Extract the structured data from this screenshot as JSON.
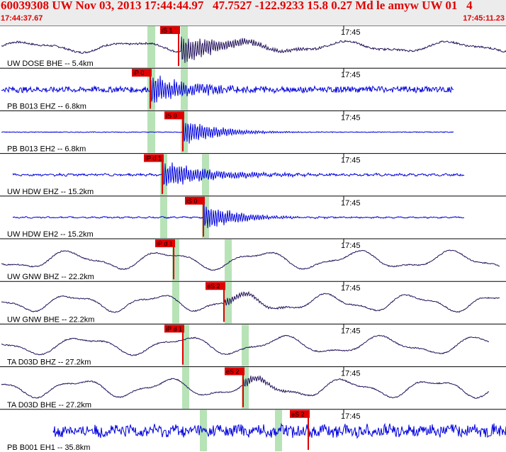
{
  "header": {
    "title": "60039308 UW Nov 03, 2013 17:44:44.97   47.7527 -122.9233 15.8 0.27 Md le amyw UW 01   4",
    "start_time": "17:44:37.67",
    "end_time": "17:45:11.23"
  },
  "tick_label": "17:45",
  "colors": {
    "trace_dark": "#22115a",
    "trace_blue": "#0000dd",
    "pick_red": "#e00000",
    "window_green": "#b7e3b7",
    "header_text": "#e00000"
  },
  "traces": [
    {
      "label": "UW DOSE BHE -- 5.4km",
      "color": "dark",
      "style": "long",
      "amp": 0.22,
      "noise": 0.05,
      "period": 150,
      "x0": 2,
      "x1": 714,
      "onset": 255,
      "burst": 0.9,
      "decay": 60,
      "picks": [
        {
          "label": "iS 1",
          "x": 252
        }
      ],
      "windows": [
        [
          208,
          219
        ],
        [
          255,
          265
        ]
      ]
    },
    {
      "label": "PB B013 EHZ -- 6.8km",
      "color": "blue",
      "style": "noise",
      "amp": 0.02,
      "noise": 0.15,
      "period": 40,
      "x0": 2,
      "x1": 640,
      "onset": 212,
      "burst": 0.9,
      "decay": 55,
      "picks": [
        {
          "label": "iP 0",
          "x": 212
        }
      ],
      "windows": [
        [
          208,
          219
        ],
        [
          255,
          265
        ]
      ]
    },
    {
      "label": "PB B013 EH2 -- 6.8km",
      "color": "blue",
      "style": "flat",
      "amp": 0.0,
      "noise": 0.02,
      "period": 40,
      "x0": 2,
      "x1": 640,
      "onset": 258,
      "burst": 0.85,
      "decay": 45,
      "picks": [
        {
          "label": "iS 0",
          "x": 258
        }
      ],
      "windows": [
        [
          208,
          219
        ],
        [
          255,
          265
        ]
      ]
    },
    {
      "label": "UW HDW EHZ -- 15.2km",
      "color": "blue",
      "style": "noise",
      "amp": 0.03,
      "noise": 0.05,
      "period": 16,
      "x0": 18,
      "x1": 655,
      "onset": 229,
      "burst": 0.8,
      "decay": 70,
      "picks": [
        {
          "label": "iP d 1",
          "x": 229
        }
      ],
      "windows": [
        [
          226,
          236
        ],
        [
          285,
          295
        ]
      ]
    },
    {
      "label": "UW HDW EH2 -- 15.2km",
      "color": "blue",
      "style": "noise",
      "amp": 0.02,
      "noise": 0.03,
      "period": 16,
      "x0": 18,
      "x1": 655,
      "onset": 287,
      "burst": 0.85,
      "decay": 45,
      "picks": [
        {
          "label": "iS 0",
          "x": 287
        }
      ],
      "windows": [
        [
          226,
          236
        ],
        [
          285,
          295
        ]
      ]
    },
    {
      "label": "UW GNW BHZ -- 22.2km",
      "color": "dark",
      "style": "long",
      "amp": 0.38,
      "noise": 0.03,
      "period": 135,
      "x0": 2,
      "x1": 705,
      "onset": 0,
      "burst": 0,
      "decay": 1,
      "picks": [
        {
          "label": "iP d 1",
          "x": 245
        }
      ],
      "windows": [
        [
          243,
          253
        ],
        [
          317,
          327
        ]
      ]
    },
    {
      "label": "UW GNW BHE -- 22.2km",
      "color": "dark",
      "style": "long",
      "amp": 0.36,
      "noise": 0.03,
      "period": 120,
      "x0": 2,
      "x1": 705,
      "onset": 317,
      "burst": 0.25,
      "decay": 40,
      "picks": [
        {
          "label": "eS 2",
          "x": 316
        }
      ],
      "windows": [
        [
          243,
          253
        ],
        [
          317,
          327
        ]
      ]
    },
    {
      "label": "TA D03D BHZ -- 27.2km",
      "color": "dark",
      "style": "long",
      "amp": 0.38,
      "noise": 0.03,
      "period": 140,
      "x0": 2,
      "x1": 690,
      "onset": 0,
      "burst": 0,
      "decay": 1,
      "picks": [
        {
          "label": "iP d 1",
          "x": 258
        }
      ],
      "windows": [
        [
          257,
          267
        ],
        [
          341,
          351
        ]
      ]
    },
    {
      "label": "TA D03D BHE -- 27.2km",
      "color": "dark",
      "style": "long",
      "amp": 0.38,
      "noise": 0.03,
      "period": 125,
      "x0": 2,
      "x1": 690,
      "onset": 343,
      "burst": 0.3,
      "decay": 40,
      "picks": [
        {
          "label": "eS 2",
          "x": 343
        }
      ],
      "windows": [
        [
          257,
          267
        ],
        [
          341,
          351
        ]
      ]
    },
    {
      "label": "PB B001 EH1 -- 35.8km",
      "color": "blue",
      "style": "noise",
      "amp": 0.08,
      "noise": 0.3,
      "period": 30,
      "x0": 75,
      "x1": 714,
      "onset": 0,
      "burst": 0,
      "decay": 1,
      "picks": [
        {
          "label": "eS 2",
          "x": 435
        }
      ],
      "windows": [
        [
          282,
          292
        ],
        [
          388,
          398
        ]
      ]
    }
  ]
}
